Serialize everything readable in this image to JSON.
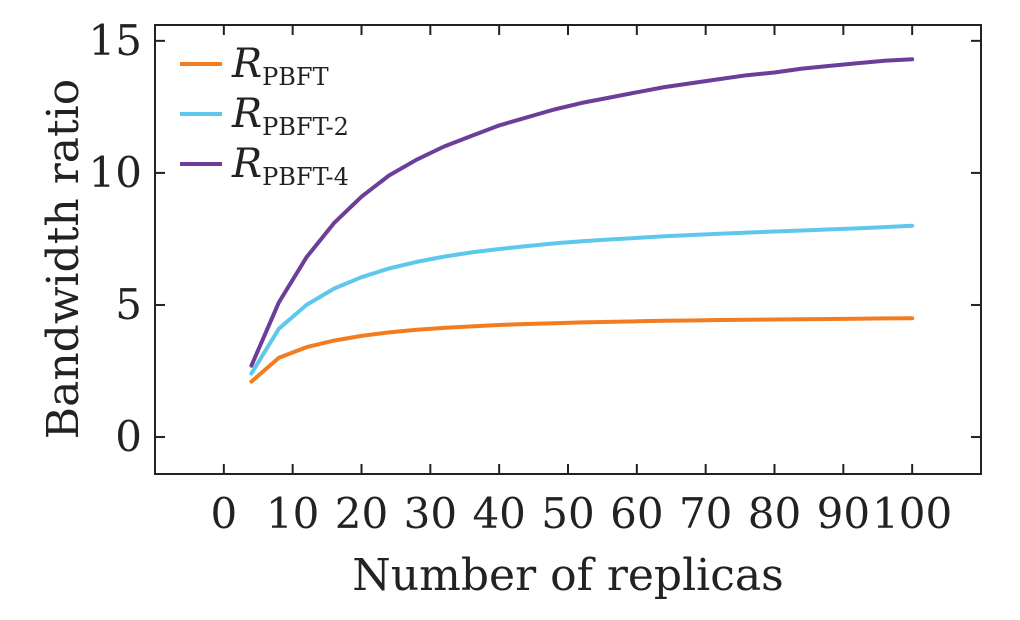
{
  "chart_data": {
    "type": "line",
    "xlabel": "Number of replicas",
    "ylabel": "Bandwidth ratio",
    "xlim": [
      -10,
      110
    ],
    "ylim": [
      -1.4,
      15.6
    ],
    "xticks": [
      0,
      10,
      20,
      30,
      40,
      50,
      60,
      70,
      80,
      90,
      100
    ],
    "yticks": [
      0,
      5,
      10,
      15
    ],
    "grid": false,
    "legend": "top-left",
    "x": [
      4,
      8,
      12,
      16,
      20,
      24,
      28,
      32,
      36,
      40,
      44,
      48,
      52,
      56,
      60,
      64,
      68,
      72,
      76,
      80,
      84,
      88,
      92,
      96,
      100
    ],
    "series": [
      {
        "name": "R",
        "name_sub": "PBFT",
        "color": "#f47c20",
        "values": [
          2.1,
          3.0,
          3.4,
          3.65,
          3.83,
          3.96,
          4.06,
          4.13,
          4.19,
          4.24,
          4.28,
          4.31,
          4.34,
          4.36,
          4.38,
          4.4,
          4.41,
          4.43,
          4.44,
          4.45,
          4.46,
          4.47,
          4.48,
          4.49,
          4.5
        ]
      },
      {
        "name": "R",
        "name_sub": "PBFT-2",
        "color": "#5ec8ec",
        "values": [
          2.4,
          4.1,
          5.0,
          5.62,
          6.05,
          6.38,
          6.63,
          6.83,
          6.99,
          7.12,
          7.23,
          7.33,
          7.41,
          7.48,
          7.54,
          7.6,
          7.65,
          7.7,
          7.74,
          7.78,
          7.82,
          7.86,
          7.9,
          7.95,
          8.0
        ]
      },
      {
        "name": "R",
        "name_sub": "PBFT-4",
        "color": "#6d3e99",
        "values": [
          2.7,
          5.1,
          6.8,
          8.1,
          9.1,
          9.9,
          10.5,
          11.0,
          11.4,
          11.8,
          12.1,
          12.4,
          12.65,
          12.85,
          13.05,
          13.25,
          13.4,
          13.55,
          13.7,
          13.8,
          13.95,
          14.05,
          14.15,
          14.25,
          14.3
        ]
      }
    ]
  }
}
